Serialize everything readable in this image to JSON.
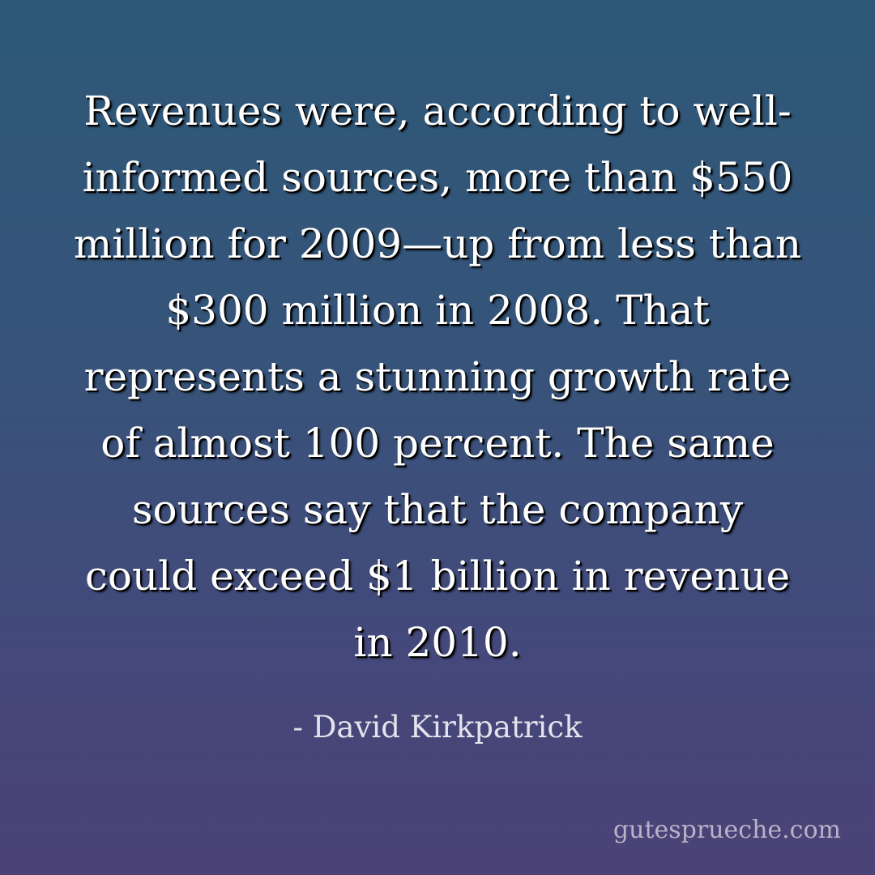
{
  "quote": {
    "text": "Revenues were, according to well-informed sources, more than $550 million for 2009—up from less than $300 million in 2008. That represents a stunning growth rate of almost 100 percent. The same sources say that the company could exceed $1 billion in revenue in 2010.",
    "author": "- David Kirkpatrick"
  },
  "watermark": "gutesprueche.com",
  "colors": {
    "background_top": "#2d5877",
    "background_bottom": "#4b4276",
    "quote_text": "#ffffff",
    "author_text": "#e4e2ec",
    "watermark_text": "#b7b3c8"
  }
}
